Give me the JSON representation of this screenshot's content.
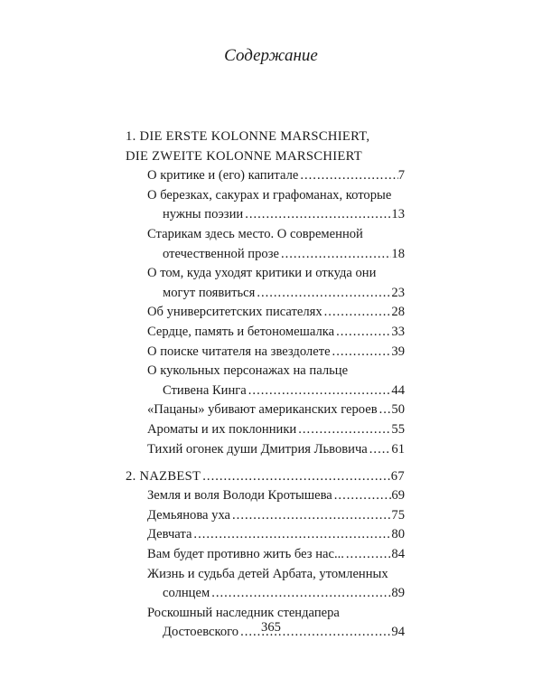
{
  "heading": "Содержание",
  "page_number": "365",
  "sections": [
    {
      "title_lines": [
        "1. DIE ERSTE KOLONNE MARSCHIERT,",
        "DIE ZWEITE KOLONNE MARSCHIERT"
      ],
      "page": "",
      "entries": [
        {
          "lines": [
            "О критике и (его) капитале"
          ],
          "page": "7"
        },
        {
          "lines": [
            "О березках, сакурах и графоманах, которые",
            "нужны поэзии"
          ],
          "page": "13"
        },
        {
          "lines": [
            "Старикам здесь место. О современной",
            "отечественной прозе"
          ],
          "page": "18"
        },
        {
          "lines": [
            "О том, куда уходят критики и откуда они",
            "могут появиться"
          ],
          "page": "23"
        },
        {
          "lines": [
            "Об университетских писателях"
          ],
          "page": "28"
        },
        {
          "lines": [
            "Сердце, память и бетономешалка"
          ],
          "page": "33"
        },
        {
          "lines": [
            "О поиске читателя на звездолете"
          ],
          "page": "39"
        },
        {
          "lines": [
            "О кукольных персонажах на пальце",
            "Стивена Кинга"
          ],
          "page": "44"
        },
        {
          "lines": [
            "«Пацаны» убивают американских героев"
          ],
          "page": "50"
        },
        {
          "lines": [
            "Ароматы и их поклонники"
          ],
          "page": "55"
        },
        {
          "lines": [
            "Тихий огонек души Дмитрия Львовича"
          ],
          "page": "61"
        }
      ]
    },
    {
      "title_lines": [
        "2. NAZBEST"
      ],
      "page": "67",
      "entries": [
        {
          "lines": [
            "Земля и воля Володи Кротышева"
          ],
          "page": "69"
        },
        {
          "lines": [
            "Демьянова уха"
          ],
          "page": "75"
        },
        {
          "lines": [
            "Девчата"
          ],
          "page": "80"
        },
        {
          "lines": [
            "Вам будет противно жить без нас..."
          ],
          "page": "84"
        },
        {
          "lines": [
            "Жизнь и судьба детей Арбата, утомленных",
            "солнцем"
          ],
          "page": "89"
        },
        {
          "lines": [
            "Роскошный наследник стендапера",
            "Достоевского"
          ],
          "page": "94"
        }
      ]
    }
  ]
}
